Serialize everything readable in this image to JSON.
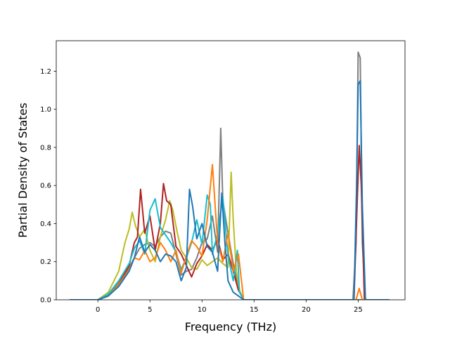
{
  "chart_data": {
    "type": "line",
    "xlabel": "Frequency (THz)",
    "ylabel": "Partial Density of States",
    "xlim": [
      -4.0,
      29.5
    ],
    "ylim": [
      0.0,
      1.36
    ],
    "xticks": [
      0,
      5,
      10,
      15,
      20,
      25
    ],
    "yticks": [
      0.0,
      0.2,
      0.4,
      0.6,
      0.8,
      1.0,
      1.2
    ],
    "xtick_labels": [
      "0",
      "5",
      "10",
      "15",
      "20",
      "25"
    ],
    "ytick_labels": [
      "0.0",
      "0.2",
      "0.4",
      "0.6",
      "0.8",
      "1.0",
      "1.2"
    ],
    "grid": false,
    "legend": "none",
    "series": [
      {
        "color": "#7f7f7f",
        "x": [
          -2.7,
          0.0,
          1.0,
          2.0,
          3.0,
          3.5,
          4.0,
          4.5,
          5.0,
          5.5,
          6.0,
          6.5,
          7.0,
          7.5,
          8.0,
          8.5,
          9.0,
          9.5,
          10.0,
          10.5,
          11.0,
          11.5,
          11.8,
          12.0,
          12.5,
          13.0,
          13.5,
          14.0,
          24.5,
          24.8,
          25.0,
          25.2,
          25.4,
          25.7,
          28.0
        ],
        "y": [
          0.0,
          0.0,
          0.03,
          0.09,
          0.17,
          0.22,
          0.27,
          0.29,
          0.3,
          0.28,
          0.33,
          0.36,
          0.35,
          0.24,
          0.13,
          0.15,
          0.16,
          0.22,
          0.3,
          0.32,
          0.44,
          0.25,
          0.9,
          0.52,
          0.35,
          0.19,
          0.06,
          0.0,
          0.0,
          0.3,
          1.3,
          1.27,
          0.3,
          0.0,
          0.0
        ]
      },
      {
        "color": "#bcbd22",
        "x": [
          -2.7,
          0.0,
          1.0,
          2.0,
          2.6,
          3.0,
          3.3,
          3.6,
          4.0,
          4.5,
          5.0,
          5.5,
          6.0,
          6.5,
          6.9,
          7.2,
          7.6,
          8.0,
          8.5,
          9.0,
          9.5,
          10.0,
          10.5,
          11.0,
          11.5,
          12.0,
          12.5,
          12.8,
          13.0,
          13.3,
          13.6,
          14.0,
          28.0
        ],
        "y": [
          0.0,
          0.0,
          0.04,
          0.15,
          0.3,
          0.37,
          0.46,
          0.39,
          0.33,
          0.37,
          0.26,
          0.2,
          0.33,
          0.42,
          0.52,
          0.47,
          0.36,
          0.26,
          0.22,
          0.17,
          0.16,
          0.21,
          0.18,
          0.2,
          0.22,
          0.19,
          0.17,
          0.67,
          0.42,
          0.15,
          0.05,
          0.0,
          0.0
        ]
      },
      {
        "color": "#b22222",
        "x": [
          -2.7,
          0.0,
          1.0,
          2.0,
          3.0,
          3.5,
          3.8,
          4.1,
          4.5,
          5.0,
          5.5,
          6.0,
          6.3,
          6.6,
          7.0,
          7.5,
          8.0,
          8.5,
          9.0,
          9.5,
          10.0,
          10.5,
          11.0,
          11.5,
          12.0,
          12.5,
          13.0,
          13.5,
          14.0,
          24.6,
          24.9,
          25.1,
          25.3,
          25.6,
          28.0
        ],
        "y": [
          0.0,
          0.0,
          0.02,
          0.08,
          0.18,
          0.3,
          0.33,
          0.58,
          0.35,
          0.44,
          0.26,
          0.4,
          0.61,
          0.52,
          0.5,
          0.28,
          0.24,
          0.18,
          0.12,
          0.19,
          0.23,
          0.29,
          0.26,
          0.32,
          0.21,
          0.24,
          0.15,
          0.05,
          0.0,
          0.0,
          0.5,
          0.81,
          0.6,
          0.0,
          0.0
        ]
      },
      {
        "color": "#17becf",
        "x": [
          -2.7,
          0.0,
          1.0,
          2.0,
          3.0,
          3.5,
          4.0,
          4.5,
          5.0,
          5.5,
          6.0,
          6.5,
          7.0,
          7.5,
          8.0,
          8.5,
          9.0,
          9.5,
          10.0,
          10.5,
          10.8,
          11.0,
          11.5,
          12.0,
          12.5,
          13.0,
          13.4,
          13.6,
          14.0,
          28.0
        ],
        "y": [
          0.0,
          0.0,
          0.03,
          0.1,
          0.19,
          0.27,
          0.31,
          0.24,
          0.47,
          0.53,
          0.38,
          0.34,
          0.3,
          0.25,
          0.16,
          0.22,
          0.3,
          0.42,
          0.29,
          0.55,
          0.5,
          0.24,
          0.35,
          0.54,
          0.23,
          0.1,
          0.26,
          0.04,
          0.0,
          0.0
        ]
      },
      {
        "color": "#ff7f0e",
        "x": [
          -2.7,
          0.0,
          1.0,
          2.0,
          3.0,
          3.5,
          4.0,
          4.5,
          5.0,
          5.5,
          6.0,
          6.5,
          7.0,
          7.5,
          8.0,
          8.5,
          9.0,
          9.5,
          10.0,
          10.5,
          11.0,
          11.5,
          12.0,
          12.5,
          13.0,
          13.5,
          14.0,
          24.8,
          25.1,
          25.4,
          28.0
        ],
        "y": [
          0.0,
          0.0,
          0.02,
          0.08,
          0.16,
          0.22,
          0.21,
          0.26,
          0.2,
          0.22,
          0.3,
          0.26,
          0.2,
          0.26,
          0.14,
          0.23,
          0.31,
          0.28,
          0.23,
          0.42,
          0.71,
          0.3,
          0.2,
          0.35,
          0.15,
          0.24,
          0.0,
          0.0,
          0.06,
          0.0,
          0.0
        ]
      },
      {
        "color": "#1f77b4",
        "x": [
          -2.7,
          0.0,
          1.0,
          2.0,
          3.0,
          3.5,
          4.0,
          4.5,
          5.0,
          5.5,
          6.0,
          6.5,
          7.0,
          7.5,
          8.0,
          8.5,
          8.8,
          9.1,
          9.5,
          10.0,
          10.5,
          11.0,
          11.5,
          11.9,
          12.2,
          12.5,
          13.0,
          13.5,
          14.0,
          24.6,
          24.85,
          25.0,
          25.2,
          25.4,
          25.7,
          28.0
        ],
        "y": [
          0.0,
          0.0,
          0.02,
          0.07,
          0.15,
          0.22,
          0.33,
          0.25,
          0.29,
          0.26,
          0.2,
          0.24,
          0.23,
          0.2,
          0.1,
          0.17,
          0.58,
          0.49,
          0.32,
          0.4,
          0.28,
          0.25,
          0.15,
          0.56,
          0.3,
          0.1,
          0.04,
          0.02,
          0.0,
          0.0,
          0.6,
          1.13,
          1.15,
          0.5,
          0.0,
          0.0
        ]
      }
    ]
  }
}
